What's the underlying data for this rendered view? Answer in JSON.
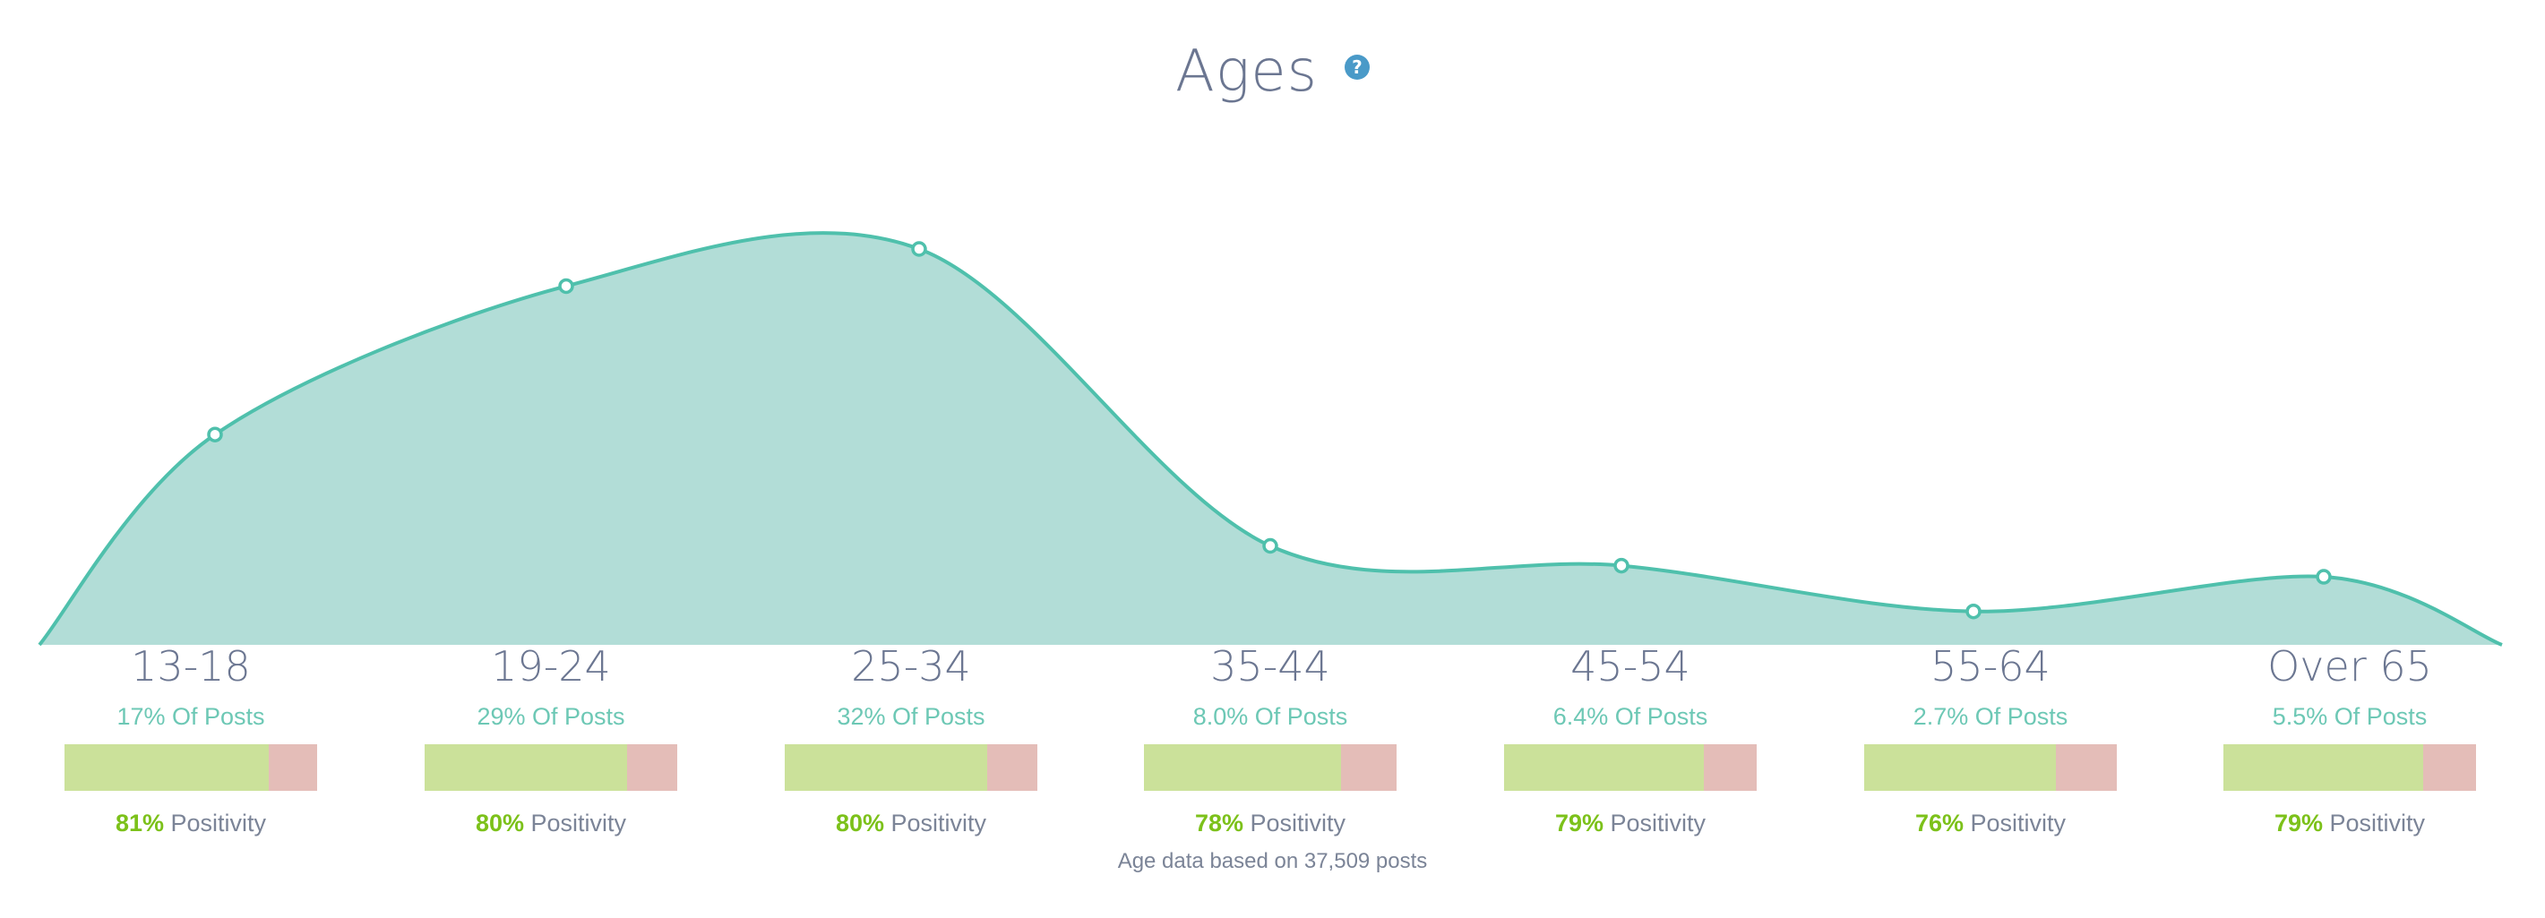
{
  "title": "Ages",
  "help_icon": "?",
  "footer": "Age data based on 37,509 posts",
  "colors": {
    "line": "#4fc0ac",
    "fill": "#b2ddd7",
    "positive": "#cbe19a",
    "negative": "#e4bdb8",
    "title": "#6b7691",
    "share": "#6dc8b5",
    "pct": "#7cc11a",
    "help": "#4a9ac8"
  },
  "categories": [
    {
      "label": "13-18",
      "share": "17% Of Posts",
      "positivity_pct": "81%",
      "positivity_label": "Positivity",
      "positive": 0.81
    },
    {
      "label": "19-24",
      "share": "29% Of Posts",
      "positivity_pct": "80%",
      "positivity_label": "Positivity",
      "positive": 0.8
    },
    {
      "label": "25-34",
      "share": "32% Of Posts",
      "positivity_pct": "80%",
      "positivity_label": "Positivity",
      "positive": 0.8
    },
    {
      "label": "35-44",
      "share": "8.0% Of Posts",
      "positivity_pct": "78%",
      "positivity_label": "Positivity",
      "positive": 0.78
    },
    {
      "label": "45-54",
      "share": "6.4% Of Posts",
      "positivity_pct": "79%",
      "positivity_label": "Positivity",
      "positive": 0.79
    },
    {
      "label": "55-64",
      "share": "2.7% Of Posts",
      "positivity_pct": "76%",
      "positivity_label": "Positivity",
      "positive": 0.76
    },
    {
      "label": "Over 65",
      "share": "5.5% Of Posts",
      "positivity_pct": "79%",
      "positivity_label": "Positivity",
      "positive": 0.79
    }
  ],
  "chart_data": {
    "type": "area",
    "title": "Ages",
    "categories": [
      "13-18",
      "19-24",
      "25-34",
      "35-44",
      "45-54",
      "55-64",
      "Over 65"
    ],
    "series": [
      {
        "values": [
          17,
          29,
          32,
          8.0,
          6.4,
          2.7,
          5.5
        ]
      }
    ],
    "positivity": [
      81,
      80,
      80,
      78,
      79,
      76,
      79
    ],
    "grid": false,
    "legend": "none"
  }
}
